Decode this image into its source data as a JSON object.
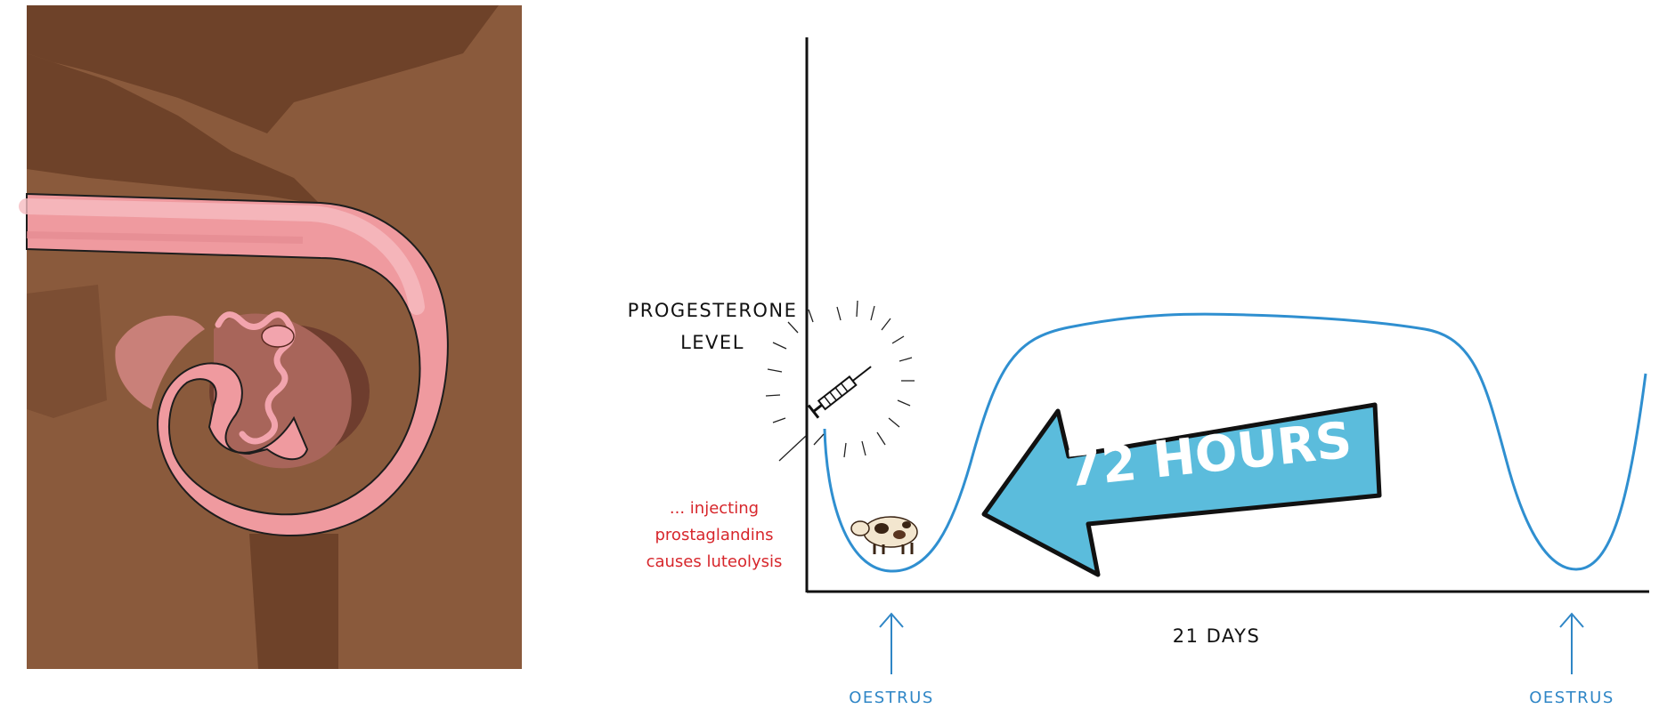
{
  "diagram": {
    "y_axis_label": [
      "PROGESTERONE",
      "LEVEL"
    ],
    "x_axis_label": "21 DAYS",
    "annotation": [
      "... injecting",
      "prostaglandins",
      "causes luteolysis"
    ],
    "arrow_text": "72 HOURS",
    "markers": [
      {
        "label": "OESTRUS"
      },
      {
        "label": "OESTRUS"
      }
    ],
    "colors": {
      "curve": "#2f8fd0",
      "arrow_fill": "#5bbcdc",
      "annotation": "#d7262b",
      "marker": "#2f86c6",
      "tissue_background": "#8a5a3c",
      "uterus": "#ef9a9f"
    },
    "icons": [
      "syringe-icon",
      "cow-icon"
    ]
  }
}
